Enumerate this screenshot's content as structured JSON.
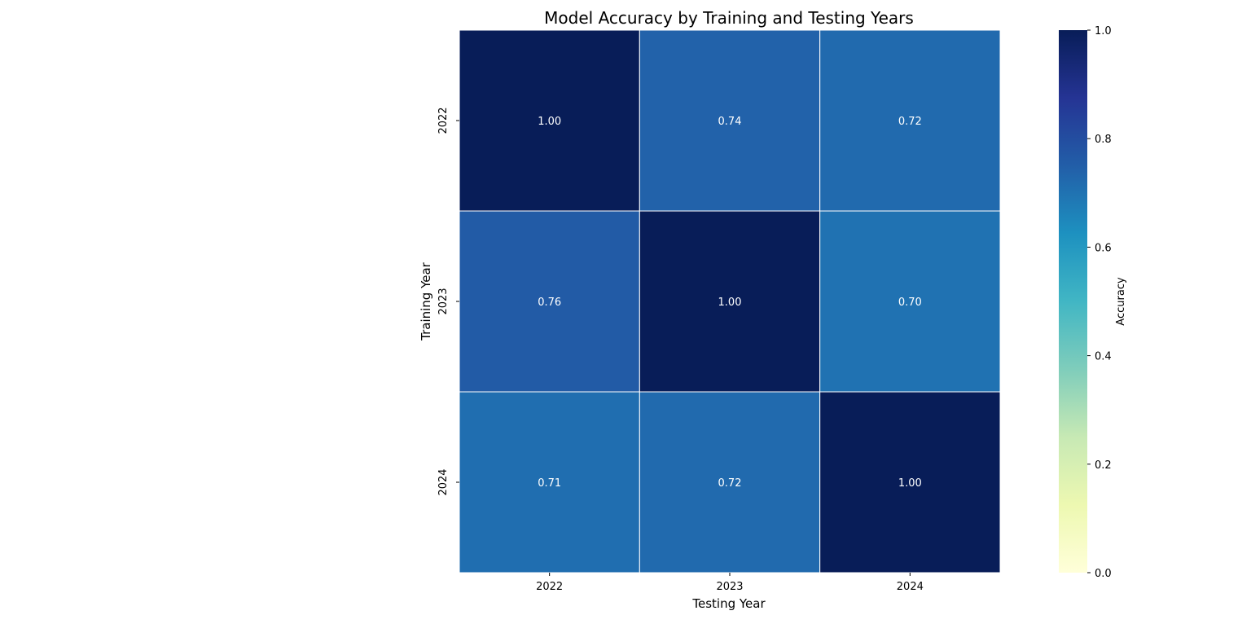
{
  "chart_data": {
    "type": "heatmap",
    "title": "Model Accuracy by Training and Testing Years",
    "xlabel": "Testing Year",
    "ylabel": "Training Year",
    "x_categories": [
      "2022",
      "2023",
      "2024"
    ],
    "y_categories": [
      "2022",
      "2023",
      "2024"
    ],
    "values": [
      [
        1.0,
        0.74,
        0.72
      ],
      [
        0.76,
        1.0,
        0.7
      ],
      [
        0.71,
        0.72,
        1.0
      ]
    ],
    "value_format": "0.00",
    "colorbar": {
      "label": "Accuracy",
      "range": [
        0,
        1
      ],
      "ticks": [
        "0.0",
        "0.2",
        "0.4",
        "0.6",
        "0.8",
        "1.0"
      ],
      "colormap": "YlGnBu"
    },
    "colors": {
      "cell_text": "#ffffff",
      "cell_border": "#ffffff",
      "axis_text": "#000000"
    }
  }
}
